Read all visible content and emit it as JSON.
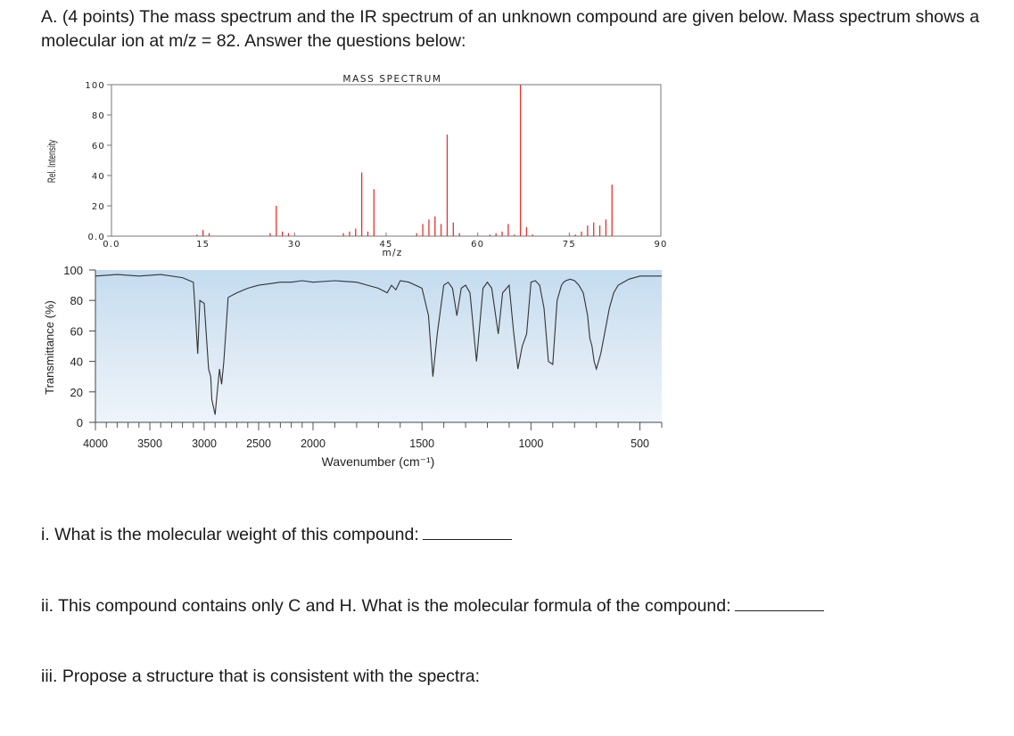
{
  "intro": "A. (4 points) The mass spectrum and the IR spectrum of an unknown compound are given below.  Mass spectrum shows a molecular ion at m/z = 82.  Answer the questions below:",
  "questions": {
    "q1": "i. What is the molecular weight of this compound:",
    "q2": "ii. This compound contains only C and H.  What is the molecular formula of the compound:",
    "q3": "iii. Propose a structure that is consistent with the spectra:"
  },
  "chart_data": [
    {
      "type": "bar",
      "title": "MASS SPECTRUM",
      "xlabel": "m/z",
      "ylabel": "Rel. Intensity",
      "xlim": [
        0,
        90
      ],
      "ylim": [
        0,
        100
      ],
      "x_ticks": [
        "0.0",
        "15",
        "30",
        "45",
        "60",
        "75",
        "90"
      ],
      "y_ticks": [
        "0.0",
        "20",
        "40",
        "60",
        "80",
        "100"
      ],
      "color": "#e8302a",
      "series": [
        {
          "x": [
            14,
            15,
            16,
            26,
            27,
            28,
            29,
            38,
            39,
            40,
            41,
            42,
            43,
            50,
            51,
            52,
            53,
            54,
            55,
            56,
            57,
            62,
            63,
            64,
            65,
            66,
            67,
            68,
            69,
            76,
            77,
            78,
            79,
            80,
            81,
            82
          ],
          "values": [
            1,
            4,
            2,
            2,
            20,
            3,
            2,
            2,
            3,
            5,
            42,
            3,
            31,
            2,
            8,
            11,
            13,
            8,
            67,
            9,
            2,
            1,
            2,
            3,
            8,
            1,
            100,
            6,
            1,
            1,
            3,
            7,
            9,
            7,
            11,
            34
          ]
        }
      ]
    },
    {
      "type": "line",
      "xlabel": "Wavenumber (cm⁻¹)",
      "ylabel": "Transmittance (%)",
      "xlim": [
        4000,
        400
      ],
      "ylim": [
        0,
        100
      ],
      "x_ticks": [
        "4000",
        "3500",
        "3000",
        "2500",
        "2000",
        "1500",
        "1000",
        "500"
      ],
      "y_ticks": [
        "0",
        "20",
        "40",
        "60",
        "80",
        "100"
      ],
      "color": "#333333",
      "background": "#dceaf5",
      "series": [
        {
          "x": [
            4000,
            3800,
            3600,
            3400,
            3200,
            3100,
            3080,
            3060,
            3040,
            3000,
            2960,
            2940,
            2930,
            2900,
            2880,
            2860,
            2840,
            2820,
            2780,
            2700,
            2600,
            2500,
            2400,
            2300,
            2200,
            2100,
            2000,
            1900,
            1800,
            1750,
            1700,
            1660,
            1640,
            1620,
            1600,
            1560,
            1500,
            1470,
            1450,
            1430,
            1400,
            1380,
            1360,
            1340,
            1320,
            1300,
            1280,
            1250,
            1220,
            1200,
            1180,
            1150,
            1130,
            1100,
            1080,
            1060,
            1040,
            1020,
            1000,
            980,
            960,
            940,
            920,
            900,
            880,
            860,
            850,
            840,
            820,
            800,
            780,
            760,
            740,
            730,
            720,
            710,
            700,
            680,
            660,
            640,
            620,
            600,
            550,
            500,
            450,
            400
          ],
          "y": [
            96,
            97,
            96,
            97,
            95,
            92,
            70,
            45,
            80,
            78,
            35,
            30,
            15,
            5,
            20,
            35,
            25,
            40,
            82,
            85,
            88,
            90,
            91,
            92,
            92,
            93,
            92,
            93,
            92,
            90,
            88,
            85,
            90,
            87,
            93,
            92,
            88,
            70,
            30,
            58,
            90,
            92,
            88,
            70,
            88,
            90,
            85,
            40,
            88,
            92,
            88,
            58,
            85,
            90,
            60,
            35,
            50,
            58,
            92,
            93,
            90,
            75,
            40,
            38,
            80,
            90,
            92,
            93,
            94,
            93,
            90,
            85,
            70,
            55,
            50,
            40,
            35,
            45,
            60,
            75,
            85,
            90,
            94,
            96,
            96,
            96
          ]
        }
      ]
    }
  ]
}
